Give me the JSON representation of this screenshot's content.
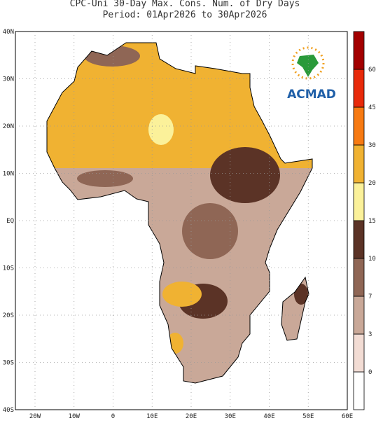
{
  "title": [
    "CPC-Uni 30-Day Max. Cons. Num. of Dry Days",
    "Period: 01Apr2026 to 30Apr2026"
  ],
  "map": {
    "lat_labels": [
      "40N",
      "30N",
      "20N",
      "10N",
      "EQ",
      "10S",
      "20S",
      "30S",
      "40S"
    ],
    "lon_labels": [
      "20W",
      "10W",
      "0",
      "10E",
      "20E",
      "30E",
      "40E",
      "50E",
      "60E"
    ]
  },
  "legend": {
    "levels": [
      0,
      3,
      7,
      10,
      15,
      20,
      30,
      45,
      60
    ],
    "colors": [
      "#ffffff",
      "#f2dcd4",
      "#c9a898",
      "#8f6655",
      "#5b3326",
      "#fbf19a",
      "#f0b232",
      "#f77a12",
      "#e82a0a",
      "#a30000"
    ]
  },
  "logo": "ACMAD"
}
